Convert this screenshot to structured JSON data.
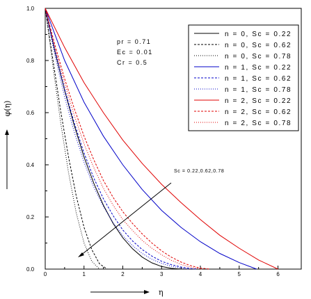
{
  "chart_data": {
    "type": "line",
    "title": "",
    "xlabel": "η",
    "ylabel": "φ(η)",
    "xlim": [
      0,
      6.6
    ],
    "ylim": [
      0,
      1.0
    ],
    "x_ticks": [
      {
        "v": 0,
        "label": "0"
      },
      {
        "v": 1,
        "label": "1"
      },
      {
        "v": 2,
        "label": "2"
      },
      {
        "v": 3,
        "label": "3"
      },
      {
        "v": 4,
        "label": "4"
      },
      {
        "v": 5,
        "label": "5"
      },
      {
        "v": 6,
        "label": "6"
      }
    ],
    "y_ticks": [
      {
        "v": 0,
        "label": "0.0"
      },
      {
        "v": 0.2,
        "label": "0.2"
      },
      {
        "v": 0.4,
        "label": "0.4"
      },
      {
        "v": 0.6,
        "label": "0.6"
      },
      {
        "v": 0.8,
        "label": "0.8"
      },
      {
        "v": 1.0,
        "label": "1.0"
      }
    ],
    "grid": false,
    "legend_position": "top-right",
    "parameters": [
      "pr = 0.71",
      "Ec = 0.01",
      "Cr = 0.5"
    ],
    "annotation": "Sc = 0.22,0.62,0.78",
    "series": [
      {
        "name": "n = 0, Sc = 0.22",
        "color": "#000000",
        "dash": "solid",
        "x": [
          0,
          0.25,
          0.5,
          0.75,
          1.0,
          1.25,
          1.5,
          1.75,
          2.0,
          2.25,
          2.5,
          2.75,
          3.0,
          3.25,
          3.5
        ],
        "y": [
          1.0,
          0.835,
          0.685,
          0.55,
          0.43,
          0.33,
          0.245,
          0.175,
          0.12,
          0.078,
          0.046,
          0.024,
          0.01,
          0.003,
          0.0
        ]
      },
      {
        "name": "n = 0, Sc = 0.62",
        "color": "#000000",
        "dash": "dashed",
        "x": [
          0,
          0.2,
          0.4,
          0.6,
          0.8,
          1.0,
          1.2,
          1.4,
          1.6
        ],
        "y": [
          1.0,
          0.8,
          0.605,
          0.43,
          0.28,
          0.16,
          0.075,
          0.02,
          0.0
        ]
      },
      {
        "name": "n = 0, Sc = 0.78",
        "color": "#000000",
        "dash": "dotted",
        "x": [
          0,
          0.2,
          0.4,
          0.6,
          0.8,
          1.0,
          1.2,
          1.4
        ],
        "y": [
          1.0,
          0.775,
          0.56,
          0.37,
          0.215,
          0.1,
          0.03,
          0.0
        ]
      },
      {
        "name": "n = 1, Sc = 0.22",
        "color": "#0000c8",
        "dash": "solid",
        "x": [
          0,
          0.5,
          1.0,
          1.5,
          2.0,
          2.5,
          3.0,
          3.5,
          4.0,
          4.5,
          5.0,
          5.45
        ],
        "y": [
          1.0,
          0.8,
          0.64,
          0.51,
          0.4,
          0.305,
          0.225,
          0.16,
          0.105,
          0.06,
          0.025,
          0.0
        ]
      },
      {
        "name": "n = 1, Sc = 0.62",
        "color": "#0000c8",
        "dash": "dashed",
        "x": [
          0,
          0.25,
          0.5,
          0.75,
          1.0,
          1.25,
          1.5,
          1.75,
          2.0,
          2.25,
          2.5,
          2.75,
          3.0,
          3.25,
          3.5,
          3.75,
          3.9
        ],
        "y": [
          1.0,
          0.84,
          0.69,
          0.56,
          0.445,
          0.35,
          0.27,
          0.205,
          0.15,
          0.108,
          0.075,
          0.05,
          0.03,
          0.017,
          0.008,
          0.002,
          0.0
        ]
      },
      {
        "name": "n = 1, Sc = 0.78",
        "color": "#0000c8",
        "dash": "dotted",
        "x": [
          0,
          0.25,
          0.5,
          0.75,
          1.0,
          1.25,
          1.5,
          1.75,
          2.0,
          2.25,
          2.5,
          2.75,
          3.0,
          3.25,
          3.5,
          3.7
        ],
        "y": [
          1.0,
          0.82,
          0.66,
          0.525,
          0.41,
          0.315,
          0.24,
          0.178,
          0.128,
          0.09,
          0.06,
          0.038,
          0.022,
          0.011,
          0.004,
          0.0
        ]
      },
      {
        "name": "n = 2, Sc = 0.22",
        "color": "#e00000",
        "dash": "solid",
        "x": [
          0,
          0.5,
          1.0,
          1.5,
          2.0,
          2.5,
          3.0,
          3.5,
          4.0,
          4.5,
          5.0,
          5.5,
          6.0
        ],
        "y": [
          1.0,
          0.85,
          0.715,
          0.6,
          0.495,
          0.405,
          0.325,
          0.255,
          0.19,
          0.13,
          0.08,
          0.035,
          0.0
        ]
      },
      {
        "name": "n = 2, Sc = 0.62",
        "color": "#e00000",
        "dash": "dashed",
        "x": [
          0,
          0.25,
          0.5,
          0.75,
          1.0,
          1.25,
          1.5,
          1.75,
          2.0,
          2.25,
          2.5,
          2.75,
          3.0,
          3.25,
          3.5,
          3.75,
          4.0,
          4.25
        ],
        "y": [
          1.0,
          0.86,
          0.73,
          0.615,
          0.51,
          0.42,
          0.34,
          0.275,
          0.22,
          0.175,
          0.135,
          0.1,
          0.07,
          0.046,
          0.027,
          0.013,
          0.004,
          0.0
        ]
      },
      {
        "name": "n = 2, Sc = 0.78",
        "color": "#e00000",
        "dash": "dotted",
        "x": [
          0,
          0.25,
          0.5,
          0.75,
          1.0,
          1.25,
          1.5,
          1.75,
          2.0,
          2.25,
          2.5,
          2.75,
          3.0,
          3.25,
          3.5,
          3.75,
          4.05
        ],
        "y": [
          1.0,
          0.85,
          0.71,
          0.59,
          0.48,
          0.39,
          0.31,
          0.245,
          0.19,
          0.148,
          0.11,
          0.08,
          0.055,
          0.034,
          0.018,
          0.007,
          0.0
        ]
      }
    ]
  }
}
